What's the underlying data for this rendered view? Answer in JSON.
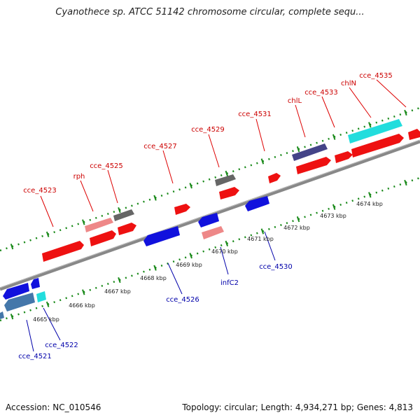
{
  "title": "Cyanothece sp. ATCC 51142 chromosome circular, complete sequ...",
  "footer": {
    "accession": "Accession: NC_010546",
    "stats": "Topology: circular; Length: 4,934,271 bp; Genes: 4,813"
  },
  "colors": {
    "backbone": "#888888",
    "ticks": "#1a8a1a",
    "forward_label": "#cc0000",
    "reverse_label": "#0000aa",
    "scale_label": "#222222"
  },
  "scale_labels": [
    "4665 kbp",
    "4666 kbp",
    "4667 kbp",
    "4668 kbp",
    "4669 kbp",
    "4670 kbp",
    "4671 kbp",
    "4672 kbp",
    "4673 kbp",
    "4674 kbp"
  ],
  "forward_labels": [
    "cce_4523",
    "rph",
    "cce_4525",
    "cce_4527",
    "cce_4529",
    "cce_4531",
    "chlL",
    "cce_4533",
    "chlN",
    "cce_4535"
  ],
  "reverse_labels": [
    "cce_4521",
    "cce_4522",
    "cce_4526",
    "infC2",
    "cce_4530"
  ]
}
